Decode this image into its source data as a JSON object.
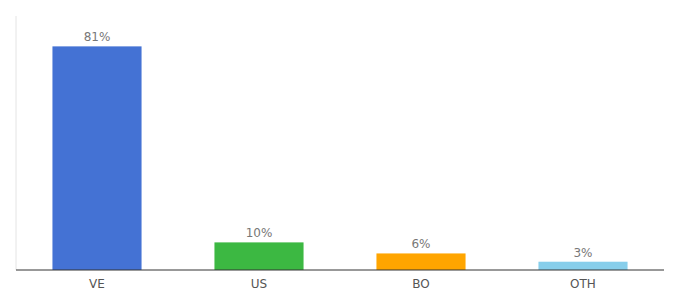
{
  "chart_data": {
    "type": "bar",
    "categories": [
      "VE",
      "US",
      "BO",
      "OTH"
    ],
    "values": [
      81,
      10,
      6,
      3
    ],
    "value_labels": [
      "81%",
      "10%",
      "6%",
      "3%"
    ],
    "colors": [
      "#4472D4",
      "#3CB842",
      "#FFA500",
      "#87CEEB"
    ],
    "ylim": [
      0,
      92
    ],
    "data_labels": true,
    "tick_labels": "x",
    "grid": false
  }
}
